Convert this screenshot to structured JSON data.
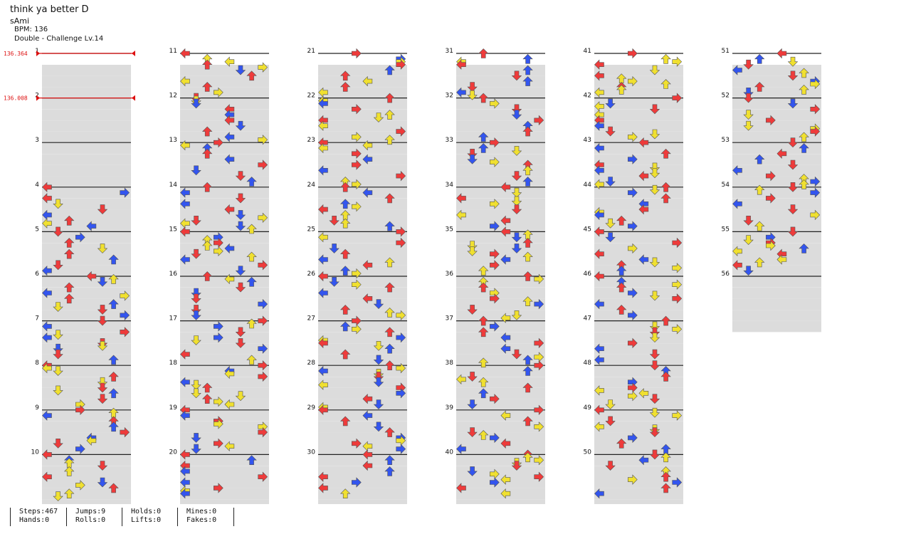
{
  "song": {
    "title": "think ya better D",
    "artist": "sAmi",
    "bpm_label": "BPM: 136",
    "difficulty_label": "Double - Challenge Lv.14"
  },
  "bpm_changes": [
    {
      "measure": 1,
      "label": "136.364"
    },
    {
      "measure": 2,
      "label": "136.008"
    }
  ],
  "measure_count": 56,
  "measures_per_column": 10,
  "colors": {
    "quarter": "#ee3b3b",
    "eighth": "#3355ee",
    "sixteenth": "#f0e030",
    "bpm_marker": "#dd1111",
    "stripe": "#dcdcdc",
    "measure_line": "#222222"
  },
  "notes": {
    "1": "",
    "2": "",
    "3": "",
    "4": "L0 4 2D 2:2 10 1U 2:3 5 4U 3:5 4L 6:4 6L 7:2",
    "5": "U0 2:1 2D 3:1 5U 3:2 3:4 7L 4:4 6L",
    "6": "7:2 8:1 9D 8:3 9L 0:2 7L 1R",
    "7": "1:4 2R 3:5 6L 8:5 8D 8:6 5D",
    "8": "0L 5D 2D 1U 4:3 5R 1:4 6:5 7R",
    "9": "0D 3D 7U 5D 0D 3D 7L 4:3",
    "10": "1:5 6L 9R 8U 4U 6L 7L 5U",
    "11": "0R 2:0 8L 3D 7U 5L 3U 2R 0U",
    "12": "0R 3R 2L 5R 9D 3L 3R",
    "13": "4R 7L 4U 9D 7D 5L 8L",
    "14": "7U 6L 5D 4R 4U 3R 7:2 2R 1L 5D 4R 3U",
    "15": "0R 1L 2D 3D 4R 5L 6R 7L 8U 9L 0R",
    "16": "3L 2R 0D 9R 6R 5U 8U 9L 8R 2L",
    "17": "0L 1D 2U 3U 4D 5R 7L 8U 9L 0R",
    "18": "0D 3D 5U 6U 7L 8R 9L 0D 2U 3R",
    "19": "1D 3U 4R 5L 6U 7D 8R 9L 0D 1R",
    "20": "2R 3U 4L 5D 6U 7R 8L 9L 0U 1D"
  },
  "stats": {
    "steps": "Steps:467",
    "hands": "Hands:0",
    "jumps": "Jumps:9",
    "rolls": "Rolls:0",
    "holds": "Holds:0",
    "lifts": "Lifts:0",
    "mines": "Mines:0",
    "fakes": "Fakes:0"
  }
}
